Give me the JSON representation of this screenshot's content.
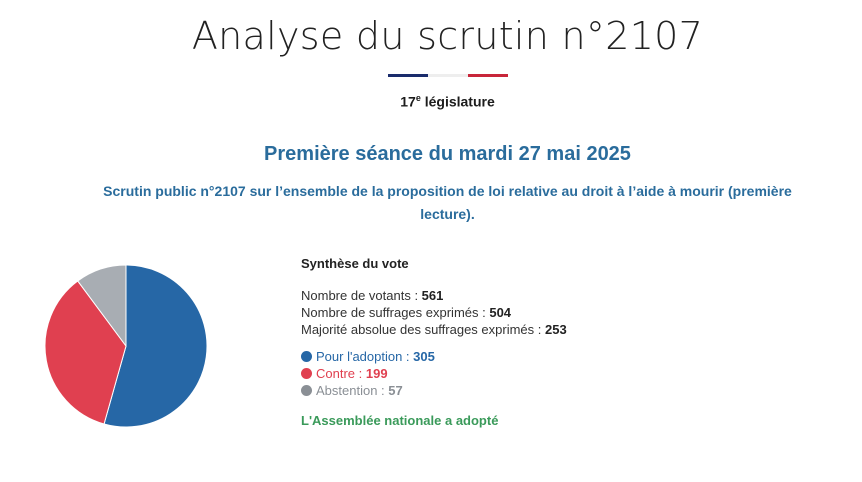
{
  "header": {
    "title": "Analyse du scrutin n°2107",
    "legislature_number": "17",
    "legislature_suffix": "e",
    "legislature_label": " législature"
  },
  "seance": "Première séance du mardi 27 mai 2025",
  "objet": "Scrutin public n°2107 sur l’ensemble de la proposition de loi relative au droit à l’aide à mourir (première lecture).",
  "synthese": {
    "title": "Synthèse du vote",
    "votants_label": "Nombre de votants : ",
    "votants": "561",
    "exprimes_label": "Nombre de suffrages exprimés : ",
    "exprimes": "504",
    "majorite_label": "Majorité absolue des suffrages exprimés : ",
    "majorite": "253",
    "pour_label": "Pour l'adoption : ",
    "pour": "305",
    "contre_label": "Contre : ",
    "contre": "199",
    "abstention_label": "Abstention : ",
    "abstention": "57",
    "result": "L'Assemblée nationale a adopté"
  },
  "colors": {
    "pour": "#2667a6",
    "contre": "#e04050",
    "abstention": "#a8adb3",
    "title_blue": "#2a6c9c",
    "result_green": "#3a9a5a",
    "flag_blue": "#1a2c6c",
    "flag_red": "#c8263a"
  },
  "chart_data": {
    "type": "pie",
    "categories": [
      "Pour l'adoption",
      "Contre",
      "Abstention"
    ],
    "values": [
      305,
      199,
      57
    ],
    "colors": [
      "#2667a6",
      "#e04050",
      "#a8adb3"
    ]
  }
}
